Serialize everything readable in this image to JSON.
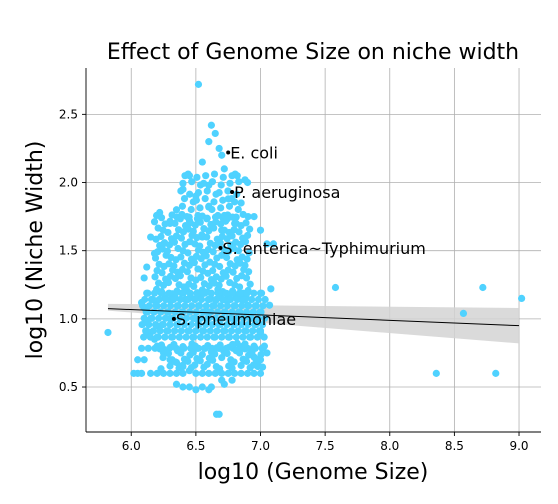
{
  "chart_data": {
    "type": "scatter",
    "title": "Effect of Genome Size on niche width",
    "xlabel": "log10 (Genome Size)",
    "ylabel": "log10 (Niche Width)",
    "xlim": [
      5.65,
      9.17
    ],
    "ylim": [
      0.17,
      2.84
    ],
    "xticks": [
      6.0,
      6.5,
      7.0,
      7.5,
      8.0,
      8.5,
      9.0
    ],
    "yticks": [
      0.5,
      1.0,
      1.5,
      2.0,
      2.5
    ],
    "xtick_labels": [
      "6.0",
      "6.5",
      "7.0",
      "7.5",
      "8.0",
      "8.5",
      "9.0"
    ],
    "ytick_labels": [
      "0.5",
      "1.0",
      "1.5",
      "2.0",
      "2.5"
    ],
    "grid": true,
    "point_color": "#4fd2ff",
    "regression": {
      "x": [
        5.82,
        9.0
      ],
      "y": [
        1.075,
        0.95
      ],
      "ci_lower": [
        1.06,
        0.82
      ],
      "ci_upper": [
        1.11,
        1.08
      ],
      "line_color": "#000000",
      "band_color": "#d4d4d4"
    },
    "annotations": [
      {
        "label": "E. coli",
        "x": 6.75,
        "y": 2.22
      },
      {
        "label": "P. aeruginosa",
        "x": 6.78,
        "y": 1.93
      },
      {
        "label": "S. enterica~Typhimurium",
        "x": 6.69,
        "y": 1.52
      },
      {
        "label": "S. pneumoniae",
        "x": 6.33,
        "y": 1.0
      }
    ],
    "points": [
      [
        6.52,
        2.72
      ],
      [
        6.62,
        2.42
      ],
      [
        6.65,
        2.36
      ],
      [
        6.6,
        2.3
      ],
      [
        6.7,
        2.2
      ],
      [
        6.55,
        2.15
      ],
      [
        6.82,
        2.05
      ],
      [
        6.45,
        2.05
      ],
      [
        6.9,
        2.0
      ],
      [
        6.6,
        1.98
      ],
      [
        6.4,
        1.95
      ],
      [
        6.72,
        2.1
      ],
      [
        6.68,
        2.25
      ],
      [
        6.88,
        2.02
      ],
      [
        6.5,
        1.9
      ],
      [
        6.85,
        1.85
      ],
      [
        6.35,
        1.8
      ],
      [
        6.95,
        1.75
      ],
      [
        6.22,
        1.78
      ],
      [
        6.6,
        1.82
      ],
      [
        6.75,
        1.88
      ],
      [
        6.3,
        1.7
      ],
      [
        7.0,
        1.65
      ],
      [
        6.15,
        1.6
      ],
      [
        6.25,
        1.55
      ],
      [
        7.05,
        1.55
      ],
      [
        7.1,
        1.55
      ],
      [
        6.18,
        1.48
      ],
      [
        6.55,
        1.6
      ],
      [
        6.7,
        1.65
      ],
      [
        6.45,
        1.72
      ],
      [
        6.8,
        1.7
      ],
      [
        6.12,
        1.38
      ],
      [
        6.1,
        1.3
      ],
      [
        7.08,
        1.22
      ],
      [
        7.07,
        1.1
      ],
      [
        7.0,
        1.05
      ],
      [
        6.08,
        1.12
      ],
      [
        6.1,
        1.08
      ],
      [
        6.12,
        0.98
      ],
      [
        6.15,
        0.9
      ],
      [
        6.18,
        0.85
      ],
      [
        6.2,
        0.8
      ],
      [
        6.22,
        0.78
      ],
      [
        6.25,
        0.75
      ],
      [
        6.3,
        0.7
      ],
      [
        6.35,
        0.68
      ],
      [
        6.4,
        0.65
      ],
      [
        6.45,
        0.62
      ],
      [
        6.5,
        0.6
      ],
      [
        6.55,
        0.6
      ],
      [
        6.6,
        0.6
      ],
      [
        6.65,
        0.6
      ],
      [
        6.7,
        0.6
      ],
      [
        6.75,
        0.6
      ],
      [
        6.8,
        0.6
      ],
      [
        6.85,
        0.6
      ],
      [
        6.9,
        0.6
      ],
      [
        6.95,
        0.6
      ],
      [
        7.0,
        0.6
      ],
      [
        6.2,
        0.6
      ],
      [
        6.25,
        0.6
      ],
      [
        6.3,
        0.6
      ],
      [
        6.35,
        0.6
      ],
      [
        6.4,
        0.6
      ],
      [
        6.05,
        0.6
      ],
      [
        6.1,
        0.7
      ],
      [
        6.15,
        0.6
      ],
      [
        6.4,
        0.5
      ],
      [
        6.45,
        0.5
      ],
      [
        6.5,
        0.48
      ],
      [
        6.6,
        0.48
      ],
      [
        6.66,
        0.3
      ],
      [
        6.68,
        0.3
      ],
      [
        6.55,
        0.5
      ],
      [
        6.35,
        0.52
      ],
      [
        6.62,
        0.5
      ],
      [
        6.7,
        0.55
      ],
      [
        6.72,
        0.52
      ],
      [
        6.78,
        0.55
      ],
      [
        6.05,
        0.7
      ],
      [
        6.08,
        0.6
      ],
      [
        6.02,
        0.6
      ],
      [
        5.82,
        0.9
      ],
      [
        6.12,
        0.9
      ],
      [
        6.2,
        0.95
      ],
      [
        6.3,
        1.0
      ],
      [
        6.5,
        1.0
      ],
      [
        6.6,
        1.05
      ],
      [
        6.8,
        1.0
      ],
      [
        6.9,
        1.1
      ],
      [
        7.0,
        0.9
      ],
      [
        7.03,
        0.8
      ],
      [
        7.05,
        0.75
      ],
      [
        7.0,
        0.7
      ],
      [
        6.98,
        0.65
      ],
      [
        6.95,
        0.72
      ],
      [
        6.88,
        0.78
      ],
      [
        6.82,
        0.82
      ],
      [
        7.58,
        1.23
      ],
      [
        8.72,
        1.23
      ],
      [
        8.57,
        1.04
      ],
      [
        9.02,
        1.15
      ],
      [
        8.36,
        0.6
      ],
      [
        8.82,
        0.6
      ]
    ],
    "dense_regions": [
      {
        "x": [
          6.2,
          6.9
        ],
        "y": [
          1.15,
          1.75
        ],
        "step_x": 0.05,
        "step_y": 0.05
      },
      {
        "x": [
          6.1,
          7.05
        ],
        "y": [
          0.8,
          1.2
        ],
        "step_x": 0.04,
        "step_y": 0.05
      },
      {
        "x": [
          6.25,
          7.0
        ],
        "y": [
          0.65,
          0.8
        ],
        "step_x": 0.05,
        "step_y": 0.05
      },
      {
        "x": [
          6.4,
          6.85
        ],
        "y": [
          1.75,
          2.05
        ],
        "step_x": 0.06,
        "step_y": 0.06
      }
    ]
  }
}
